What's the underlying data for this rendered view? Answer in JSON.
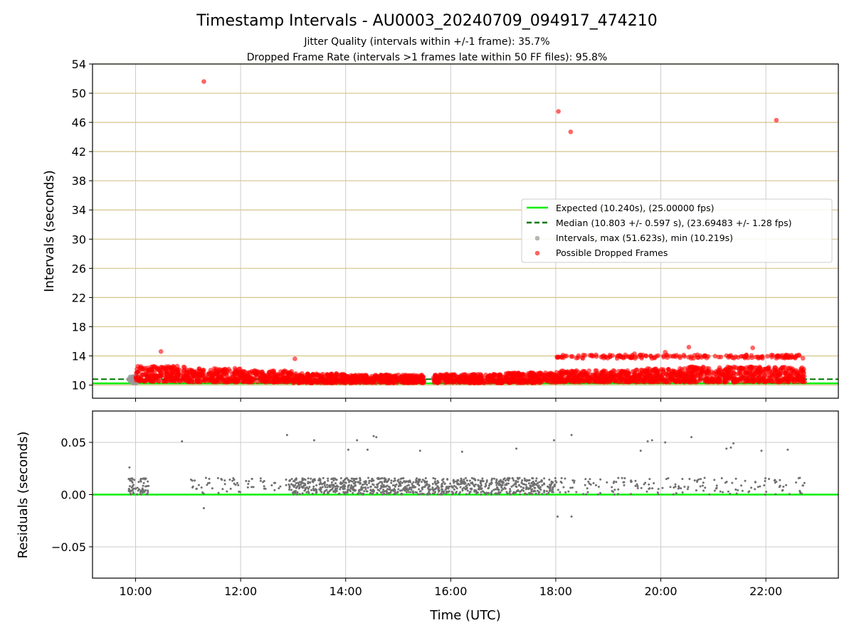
{
  "figure": {
    "title": "Timestamp Intervals - AU0003_20240709_094917_474210",
    "subtitle_1": "Jitter Quality (intervals within +/-1 frame): 35.7%",
    "subtitle_2": "Dropped Frame Rate (intervals >1 frames late within 50 FF files): 95.8%"
  },
  "chart_data": [
    {
      "type": "scatter",
      "ylabel": "Intervals (seconds)",
      "x_range_hours": [
        9.18,
        23.38
      ],
      "ylim": [
        8.2,
        54
      ],
      "yticks": [
        10,
        14,
        18,
        22,
        26,
        30,
        34,
        38,
        42,
        46,
        50,
        54
      ],
      "ytick_labels": [
        "10",
        "14",
        "18",
        "22",
        "26",
        "30",
        "34",
        "38",
        "42",
        "46",
        "50",
        "54"
      ],
      "grid": true,
      "legend_position": "right",
      "legend": {
        "expected": "Expected (10.240s), (25.00000 fps)",
        "median": "Median (10.803 +/- 0.597 s), (23.69483 +/- 1.28 fps)",
        "intervals": "Intervals, max (51.623s), min (10.219s)",
        "dropped": "Possible Dropped Frames"
      },
      "expected_line": 10.24,
      "median_line": 10.803,
      "colors": {
        "expected": "#00ee00",
        "median": "#007700",
        "intervals": "#999999",
        "dropped": "#ff0000",
        "hgrid": "#d4c48a",
        "vgrid": "#cccccc"
      },
      "outliers": [
        {
          "x": "11:18",
          "y": 51.6
        },
        {
          "x": "18:03",
          "y": 47.5
        },
        {
          "x": "18:17",
          "y": 44.7
        },
        {
          "x": "22:12",
          "y": 46.3
        },
        {
          "x": "10:29",
          "y": 14.6
        },
        {
          "x": "13:02",
          "y": 13.6
        },
        {
          "x": "20:32",
          "y": 15.2
        },
        {
          "x": "20:05",
          "y": 14.5
        },
        {
          "x": "21:45",
          "y": 15.1
        },
        {
          "x": "19:30",
          "y": 14.3
        }
      ],
      "dense_dropped_segments": [
        {
          "start": "10:00",
          "end": "11:00",
          "ymin": 10.5,
          "ymax": 12.6
        },
        {
          "start": "11:00",
          "end": "12:00",
          "ymin": 10.4,
          "ymax": 12.3
        },
        {
          "start": "12:00",
          "end": "13:00",
          "ymin": 10.4,
          "ymax": 12.0
        },
        {
          "start": "13:00",
          "end": "14:00",
          "ymin": 10.3,
          "ymax": 11.6
        },
        {
          "start": "14:00",
          "end": "15:30",
          "ymin": 10.3,
          "ymax": 11.4
        },
        {
          "start": "15:40",
          "end": "17:00",
          "ymin": 10.3,
          "ymax": 11.5
        },
        {
          "start": "17:00",
          "end": "18:00",
          "ymin": 10.3,
          "ymax": 11.7
        },
        {
          "start": "18:00",
          "end": "19:30",
          "ymin": 10.4,
          "ymax": 12.0
        },
        {
          "start": "19:30",
          "end": "20:30",
          "ymin": 10.4,
          "ymax": 12.3
        },
        {
          "start": "20:30",
          "end": "22:45",
          "ymin": 10.4,
          "ymax": 12.5
        }
      ],
      "upper_dropped_band": {
        "start": "18:00",
        "end": "22:45",
        "y": 13.9
      }
    },
    {
      "type": "scatter",
      "ylabel": "Residuals (seconds)",
      "xlabel": "Time (UTC)",
      "ylim": [
        -0.08,
        0.08
      ],
      "yticks": [
        -0.05,
        0.0,
        0.05
      ],
      "ytick_labels": [
        "−0.05",
        "0.00",
        "0.05"
      ],
      "xticks": [
        "10:00",
        "12:00",
        "14:00",
        "16:00",
        "18:00",
        "20:00",
        "22:00"
      ],
      "grid": true,
      "zero_line": 0.0,
      "colors": {
        "points": "#707070",
        "zero": "#00ee00",
        "grid": "#cccccc"
      },
      "outliers": [
        {
          "x": "09:53",
          "y": 0.026
        },
        {
          "x": "10:53",
          "y": 0.051
        },
        {
          "x": "12:53",
          "y": 0.057
        },
        {
          "x": "13:24",
          "y": 0.052
        },
        {
          "x": "14:03",
          "y": 0.043
        },
        {
          "x": "14:13",
          "y": 0.052
        },
        {
          "x": "14:25",
          "y": 0.043
        },
        {
          "x": "14:32",
          "y": 0.056
        },
        {
          "x": "14:35",
          "y": 0.055
        },
        {
          "x": "15:25",
          "y": 0.042
        },
        {
          "x": "16:13",
          "y": 0.041
        },
        {
          "x": "17:15",
          "y": 0.044
        },
        {
          "x": "17:58",
          "y": 0.052
        },
        {
          "x": "18:18",
          "y": 0.057
        },
        {
          "x": "19:37",
          "y": 0.042
        },
        {
          "x": "19:45",
          "y": 0.051
        },
        {
          "x": "19:50",
          "y": 0.052
        },
        {
          "x": "20:05",
          "y": 0.05
        },
        {
          "x": "20:35",
          "y": 0.055
        },
        {
          "x": "21:15",
          "y": 0.044
        },
        {
          "x": "21:20",
          "y": 0.045
        },
        {
          "x": "21:23",
          "y": 0.049
        },
        {
          "x": "21:55",
          "y": 0.042
        },
        {
          "x": "22:25",
          "y": 0.043
        },
        {
          "x": "11:18",
          "y": -0.013
        },
        {
          "x": "18:02",
          "y": -0.021
        },
        {
          "x": "18:18",
          "y": -0.021
        }
      ],
      "dense_segments": [
        {
          "start": "09:52",
          "end": "10:15",
          "ymin": 0.0,
          "ymax": 0.016
        },
        {
          "start": "12:55",
          "end": "18:00",
          "ymin": 0.0,
          "ymax": 0.016
        }
      ]
    }
  ]
}
